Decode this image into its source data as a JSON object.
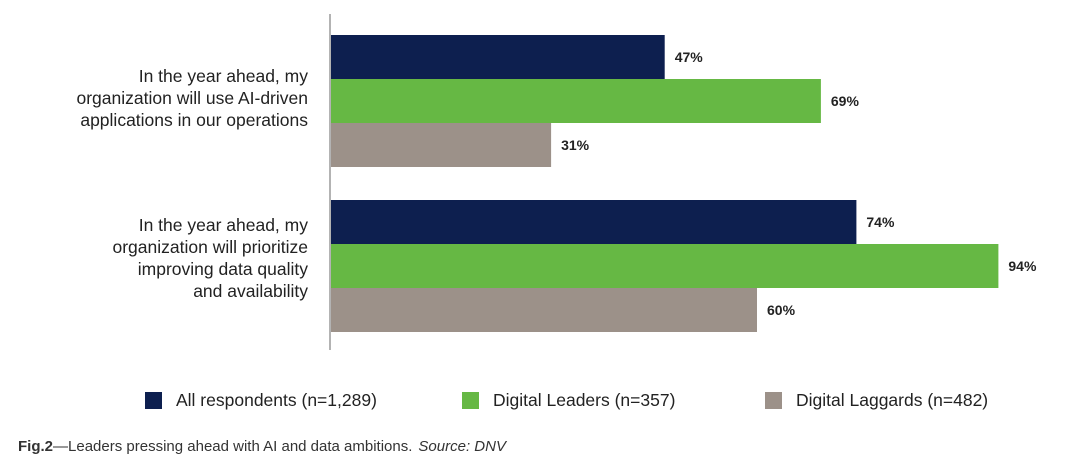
{
  "chart_data": {
    "type": "bar",
    "orientation": "horizontal",
    "categories": [
      "In the year ahead, my organization will use AI-driven applications in our operations",
      "In the year ahead, my organization will prioritize improving data quality and availability"
    ],
    "category_lines": [
      [
        "In the year ahead, my",
        "organization will use AI-driven",
        "applications in our operations"
      ],
      [
        "In the year ahead, my",
        "organization will prioritize",
        "improving data quality",
        "and availability"
      ]
    ],
    "series": [
      {
        "name": "All respondents (n=1,289)",
        "values": [
          47,
          74
        ],
        "labels": [
          "47%",
          "74%"
        ],
        "color": "#0d1f4f"
      },
      {
        "name": "Digital Leaders (n=357)",
        "values": [
          69,
          94
        ],
        "labels": [
          "69%",
          "94%"
        ],
        "color": "#66b844"
      },
      {
        "name": "Digital Laggards (n=482)",
        "values": [
          31,
          60
        ],
        "labels": [
          "31%",
          "60%"
        ],
        "color": "#9c9189"
      }
    ],
    "xlim": [
      0,
      100
    ],
    "grid": false,
    "legend_position": "bottom"
  },
  "caption": {
    "fig_label": "Fig.2",
    "text": "—Leaders pressing ahead with AI and data ambitions.",
    "source": "Source: DNV"
  }
}
